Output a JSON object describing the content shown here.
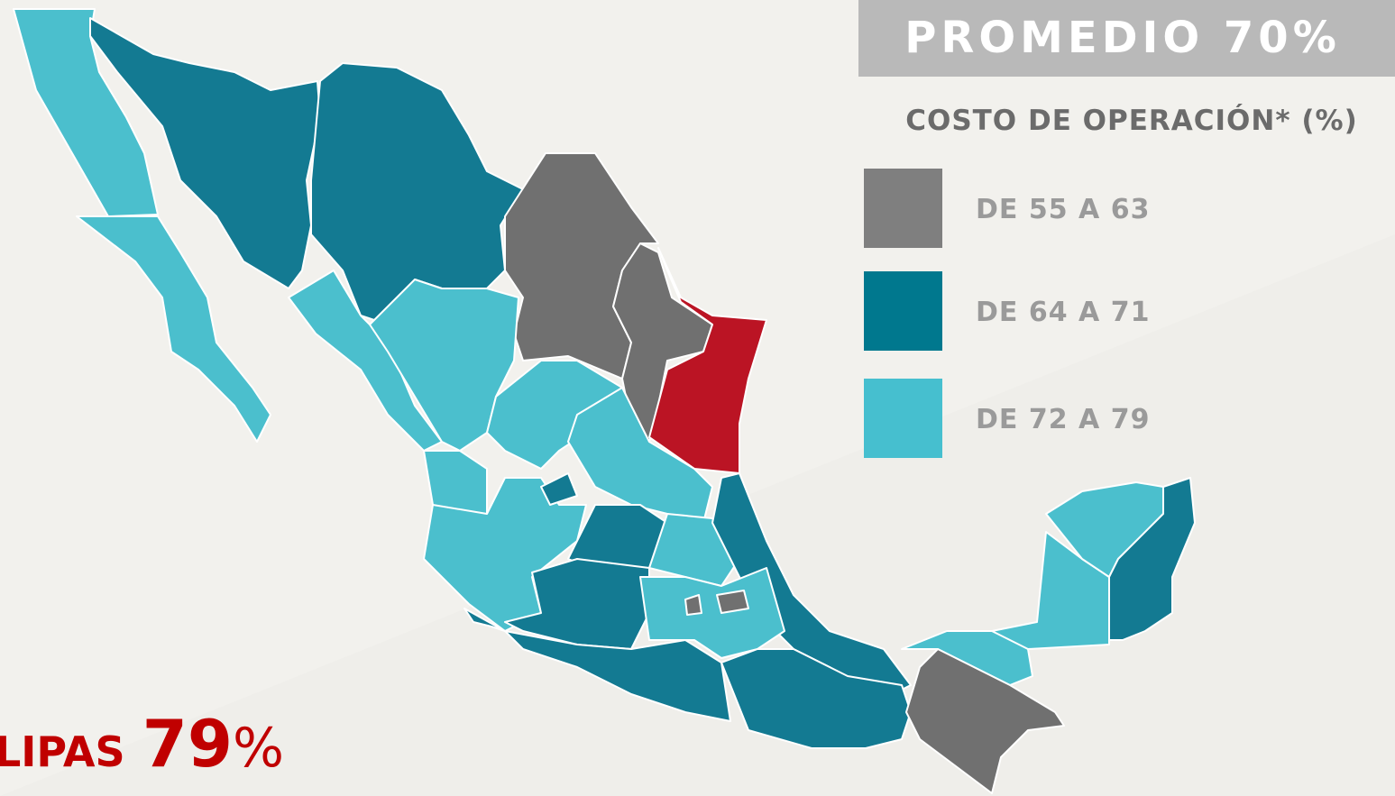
{
  "header": {
    "title": "PROMEDIO 70%",
    "subtitle": "COSTO DE OPERACIÓN* (%)"
  },
  "legend": [
    {
      "label": "DE 55 A 63",
      "color": "#7f7f7f"
    },
    {
      "label": "DE 64 A 71",
      "color": "#00788e"
    },
    {
      "label": "DE 72 A 79",
      "color": "#46bfcf"
    }
  ],
  "highlight": {
    "label": "LIPAS",
    "value": "79",
    "unit": "%"
  }
}
